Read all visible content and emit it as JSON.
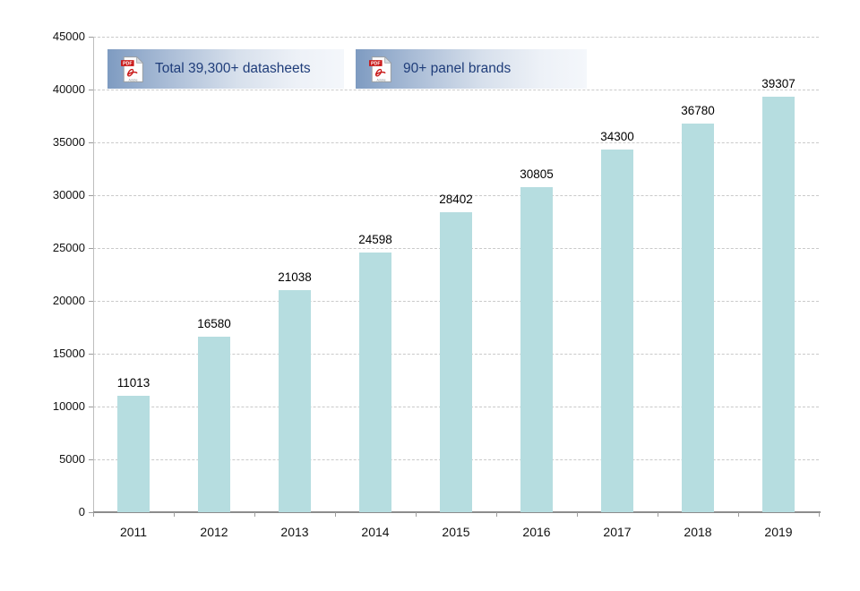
{
  "page": {
    "background": "#ffffff"
  },
  "badges": {
    "items": [
      {
        "label": "Total 39,300+ datasheets",
        "icon": "pdf-file-icon"
      },
      {
        "label": "90+ panel brands",
        "icon": "pdf-file-icon"
      }
    ],
    "text_color": "#1f3d7a"
  },
  "colors": {
    "bar_fill": "#b6dde0",
    "gridline": "#cacaca",
    "x_axis_line": "#8c8c8c",
    "y_axis_line": "#bdbdbd",
    "tick": "#9c9c9c",
    "axis_text": "#111111",
    "value_text": "#000000",
    "badge_gradient_start": "#7e9bc1",
    "badge_gradient_end": "#f4f7fb",
    "badge_text": "#1f3d7a",
    "pdf_red": "#c81414"
  },
  "chart_data": {
    "type": "bar",
    "title": "",
    "categories": [
      "2011",
      "2012",
      "2013",
      "2014",
      "2015",
      "2016",
      "2017",
      "2018",
      "2019"
    ],
    "series": [
      {
        "name": "datasheets",
        "values": [
          11013,
          16580,
          21038,
          24598,
          28402,
          30805,
          34300,
          36780,
          39307
        ]
      }
    ],
    "xlabel": "",
    "ylabel": "",
    "ylim": [
      0,
      45000
    ],
    "ytick_step": 5000,
    "ytick_labels": [
      "0",
      "5000",
      "10000",
      "15000",
      "20000",
      "25000",
      "30000",
      "35000",
      "40000",
      "45000"
    ],
    "grid": "horizontal-dashed",
    "legend": "none",
    "value_labels_shown": true
  }
}
